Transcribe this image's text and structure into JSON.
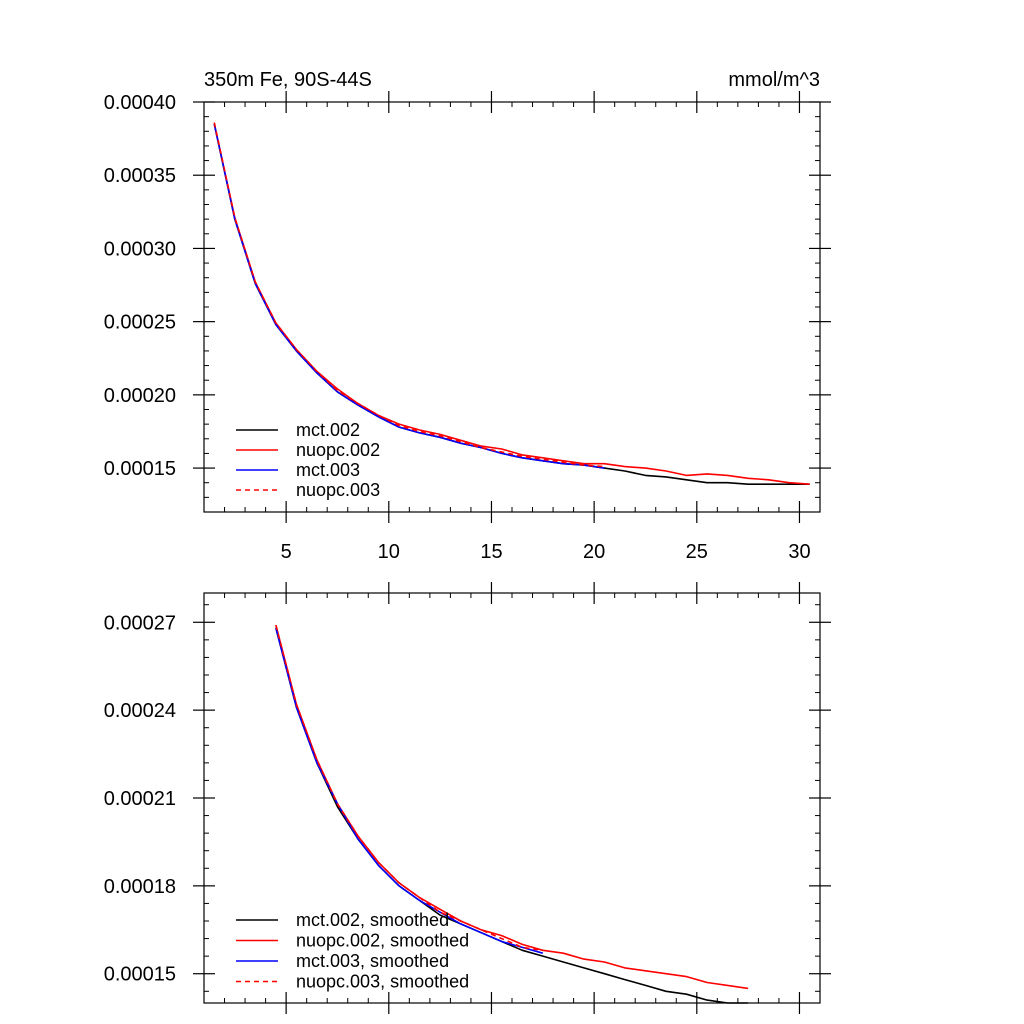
{
  "chart_data": [
    {
      "type": "line",
      "title_left": "350m Fe, 90S-44S",
      "title_right": "mmol/m^3",
      "xlabel": "",
      "ylabel": "",
      "xlim": [
        1,
        31
      ],
      "ylim": [
        0.00012,
        0.0004
      ],
      "xticks": [
        5,
        10,
        15,
        20,
        25,
        30
      ],
      "xtick_labels": [
        "5",
        "10",
        "15",
        "20",
        "25",
        "30"
      ],
      "yticks": [
        0.00015,
        0.0002,
        0.00025,
        0.0003,
        0.00035,
        0.0004
      ],
      "ytick_labels": [
        "0.00015",
        "0.00020",
        "0.00025",
        "0.00030",
        "0.00035",
        "0.00040"
      ],
      "legend_position": "bottom-left",
      "grid": false,
      "series": [
        {
          "name": "mct.002",
          "color": "#000000",
          "dash": false,
          "x": [
            1.5,
            2.5,
            3.5,
            4.5,
            5.5,
            6.5,
            7.5,
            8.5,
            9.5,
            10.5,
            11.5,
            12.5,
            13.5,
            14.5,
            15.5,
            16.5,
            17.5,
            18.5,
            19.5,
            20.5,
            21.5,
            22.5,
            23.5,
            24.5,
            25.5,
            26.5,
            27.5,
            28.5,
            29.5,
            30.5
          ],
          "values": [
            0.000385,
            0.00032,
            0.000276,
            0.000248,
            0.00023,
            0.000215,
            0.000202,
            0.000193,
            0.000185,
            0.000178,
            0.000174,
            0.000171,
            0.000167,
            0.000164,
            0.00016,
            0.000157,
            0.000155,
            0.000153,
            0.000152,
            0.00015,
            0.000148,
            0.000145,
            0.000144,
            0.000142,
            0.00014,
            0.00014,
            0.000139,
            0.000139,
            0.000139,
            0.000139
          ]
        },
        {
          "name": "nuopc.002",
          "color": "#ff0000",
          "dash": false,
          "x": [
            1.5,
            2.5,
            3.5,
            4.5,
            5.5,
            6.5,
            7.5,
            8.5,
            9.5,
            10.5,
            11.5,
            12.5,
            13.5,
            14.5,
            15.5,
            16.5,
            17.5,
            18.5,
            19.5,
            20.5,
            21.5,
            22.5,
            23.5,
            24.5,
            25.5,
            26.5,
            27.5,
            28.5,
            29.5,
            30.5
          ],
          "values": [
            0.000385,
            0.000321,
            0.000277,
            0.000249,
            0.000231,
            0.000216,
            0.000204,
            0.000194,
            0.000186,
            0.00018,
            0.000176,
            0.000173,
            0.000169,
            0.000165,
            0.000163,
            0.000159,
            0.000157,
            0.000155,
            0.000153,
            0.000153,
            0.000151,
            0.00015,
            0.000148,
            0.000145,
            0.000146,
            0.000145,
            0.000143,
            0.000142,
            0.00014,
            0.000139
          ]
        },
        {
          "name": "mct.003",
          "color": "#0000ff",
          "dash": false,
          "x": [
            1.5,
            2.5,
            3.5,
            4.5,
            5.5,
            6.5,
            7.5,
            8.5,
            9.5,
            10.5,
            11.5,
            12.5,
            13.5,
            14.5,
            15.5,
            16.5,
            17.5,
            18.5,
            19.5,
            20.5
          ],
          "values": [
            0.000385,
            0.00032,
            0.000276,
            0.000248,
            0.00023,
            0.000215,
            0.000202,
            0.000193,
            0.000185,
            0.000178,
            0.000174,
            0.000171,
            0.000167,
            0.000164,
            0.00016,
            0.000157,
            0.000155,
            0.000153,
            0.000152,
            0.00015
          ]
        },
        {
          "name": "nuopc.003",
          "color": "#ff0000",
          "dash": true,
          "x": [
            1.5,
            2.5,
            3.5,
            4.5,
            5.5,
            6.5,
            7.5,
            8.5,
            9.5,
            10.5,
            11.5,
            12.5,
            13.5,
            14.5,
            15.5,
            16.5,
            17.5,
            18.5,
            19.5,
            20.5
          ],
          "values": [
            0.000386,
            0.000321,
            0.000277,
            0.000249,
            0.000231,
            0.000216,
            0.000203,
            0.000194,
            0.000186,
            0.000179,
            0.000175,
            0.000172,
            0.000168,
            0.000164,
            0.000161,
            0.000158,
            0.000156,
            0.000154,
            0.000152,
            0.000151
          ]
        }
      ]
    },
    {
      "type": "line",
      "xlim": [
        1,
        31
      ],
      "ylim": [
        0.00014,
        0.00028
      ],
      "xticks": [
        5,
        10,
        15,
        20,
        25,
        30
      ],
      "xtick_labels": [],
      "yticks": [
        0.00015,
        0.00018,
        0.00021,
        0.00024,
        0.00027
      ],
      "ytick_labels": [
        "0.00015",
        "0.00018",
        "0.00021",
        "0.00024",
        "0.00027"
      ],
      "legend_position": "bottom-left",
      "grid": false,
      "series": [
        {
          "name": "mct.002, smoothed",
          "color": "#000000",
          "dash": false,
          "x": [
            4.5,
            5.5,
            6.5,
            7.5,
            8.5,
            9.5,
            10.5,
            11.5,
            12.5,
            13.5,
            14.5,
            15.5,
            16.5,
            17.5,
            18.5,
            19.5,
            20.5,
            21.5,
            22.5,
            23.5,
            24.5,
            25.5,
            26.5,
            27.5
          ],
          "values": [
            0.000268,
            0.000241,
            0.000222,
            0.000207,
            0.000196,
            0.000187,
            0.00018,
            0.000175,
            0.00017,
            0.000167,
            0.000164,
            0.000161,
            0.000158,
            0.000156,
            0.000154,
            0.000152,
            0.00015,
            0.000148,
            0.000146,
            0.000144,
            0.000143,
            0.000141,
            0.00014,
            0.00014
          ]
        },
        {
          "name": "nuopc.002, smoothed",
          "color": "#ff0000",
          "dash": false,
          "x": [
            4.5,
            5.5,
            6.5,
            7.5,
            8.5,
            9.5,
            10.5,
            11.5,
            12.5,
            13.5,
            14.5,
            15.5,
            16.5,
            17.5,
            18.5,
            19.5,
            20.5,
            21.5,
            22.5,
            23.5,
            24.5,
            25.5,
            26.5,
            27.5
          ],
          "values": [
            0.000269,
            0.000242,
            0.000223,
            0.000208,
            0.000197,
            0.000188,
            0.000181,
            0.000176,
            0.000172,
            0.000168,
            0.000165,
            0.000163,
            0.00016,
            0.000158,
            0.000157,
            0.000155,
            0.000154,
            0.000152,
            0.000151,
            0.00015,
            0.000149,
            0.000147,
            0.000146,
            0.000145
          ]
        },
        {
          "name": "mct.003, smoothed",
          "color": "#0000ff",
          "dash": false,
          "x": [
            4.5,
            5.5,
            6.5,
            7.5,
            8.5,
            9.5,
            10.5,
            11.5,
            12.5,
            13.5,
            14.5,
            15.5,
            16.5,
            17.5
          ],
          "values": [
            0.000268,
            0.000241,
            0.000222,
            0.000208,
            0.000196,
            0.000187,
            0.00018,
            0.000175,
            0.000171,
            0.000167,
            0.000164,
            0.000161,
            0.000159,
            0.000157
          ]
        },
        {
          "name": "nuopc.003, smoothed",
          "color": "#ff0000",
          "dash": true,
          "x": [
            4.5,
            5.5,
            6.5,
            7.5,
            8.5,
            9.5,
            10.5,
            11.5,
            12.5,
            13.5,
            14.5,
            15.5,
            16.5,
            17.5
          ],
          "values": [
            0.000269,
            0.000242,
            0.000223,
            0.000208,
            0.000197,
            0.000188,
            0.000181,
            0.000176,
            0.000171,
            0.000168,
            0.000165,
            0.000162,
            0.000159,
            0.000158
          ]
        }
      ]
    }
  ]
}
